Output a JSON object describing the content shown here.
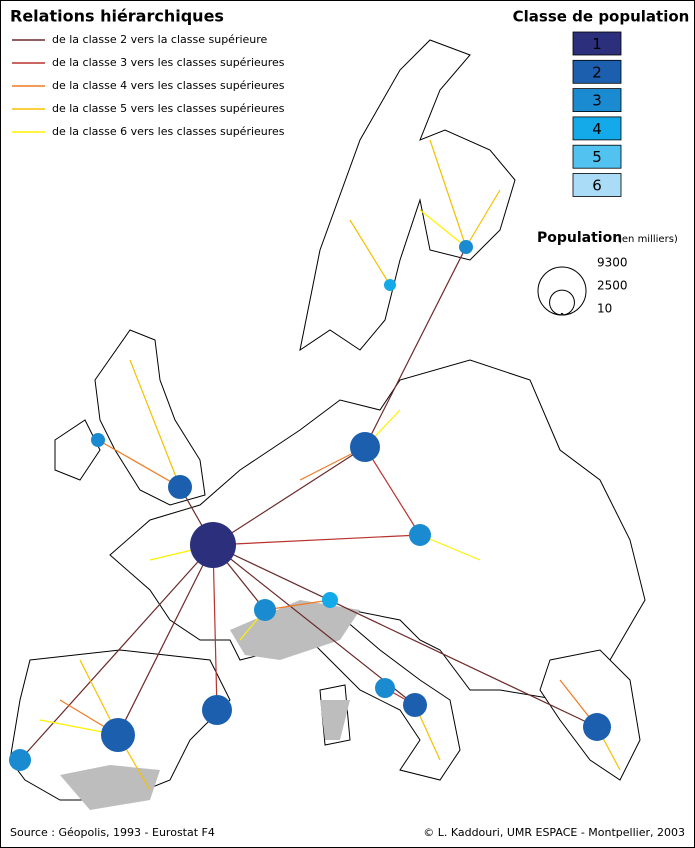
{
  "title": "Relations hiérarchiques",
  "relations_legend": [
    {
      "label": "de la classe 2 vers la classe supérieure",
      "color": "#6b2a2a"
    },
    {
      "label": "de la classe 3 vers les classes supérieures",
      "color": "#b8322e"
    },
    {
      "label": "de la classe 4 vers les classes supérieures",
      "color": "#f07a22"
    },
    {
      "label": "de la classe 5 vers les classes supérieures",
      "color": "#f5c000"
    },
    {
      "label": "de la classe 6 vers les classes supérieures",
      "color": "#fff000"
    }
  ],
  "class_legend": {
    "title": "Classe de population",
    "classes": [
      {
        "label": "1",
        "color": "#2c2f7c"
      },
      {
        "label": "2",
        "color": "#1b5fae"
      },
      {
        "label": "3",
        "color": "#1a8bd0"
      },
      {
        "label": "4",
        "color": "#14a9e8"
      },
      {
        "label": "5",
        "color": "#52c2f0"
      },
      {
        "label": "6",
        "color": "#aadcf8"
      }
    ]
  },
  "population_legend": {
    "title": "Population",
    "unit": "(en milliers)",
    "values": [
      9300,
      2500,
      10
    ]
  },
  "source": "Source : Géopolis, 1993 - Eurostat F4",
  "credit": "© L. Kaddouri, UMR ESPACE - Montpellier, 2003"
}
